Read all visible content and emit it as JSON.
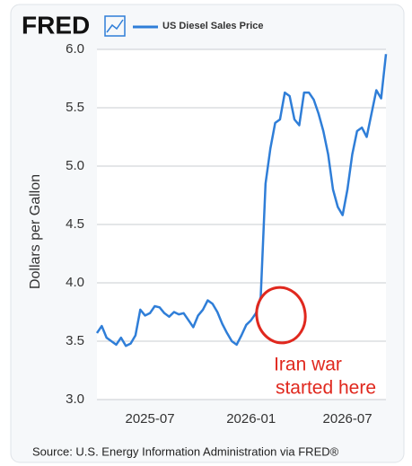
{
  "chart_data": {
    "type": "line",
    "logo": "FRED",
    "ylabel": "Dollars per Gallon",
    "source": "Source: U.S. Energy Information Administration via FRED®",
    "annotations": [
      "Iran war",
      "started here"
    ],
    "annotation_color": "#e0281e",
    "ylim": [
      3.0,
      6.0
    ],
    "yticks": [
      {
        "value": 3,
        "label": "3.0"
      },
      3.5,
      {
        "value": 4,
        "label": "4.0"
      },
      4.5,
      {
        "value": 5,
        "label": "5.0"
      },
      5.5,
      {
        "value": 6,
        "label": "6.0"
      }
    ],
    "grid": true,
    "categories": [
      null,
      null,
      null,
      null,
      null,
      null,
      null,
      null,
      null,
      null,
      null,
      "2025-07",
      null,
      null,
      null,
      null,
      null,
      null,
      null,
      null,
      null,
      null,
      null,
      null,
      null,
      null,
      null,
      null,
      null,
      null,
      null,
      null,
      "2026-01",
      null,
      null,
      null,
      null,
      null,
      null,
      null,
      null,
      null,
      null,
      null,
      null,
      null,
      null,
      null,
      null,
      null,
      null,
      null,
      "2026-07",
      null,
      null,
      null,
      null,
      null,
      null,
      null,
      null
    ],
    "series": [
      {
        "name": "US Diesel Sales Price",
        "color": "#2f7ed8",
        "values": [
          3.57,
          3.63,
          3.53,
          3.5,
          3.47,
          3.53,
          3.46,
          3.48,
          3.55,
          3.77,
          3.72,
          3.74,
          3.8,
          3.79,
          3.74,
          3.71,
          3.75,
          3.73,
          3.74,
          3.68,
          3.62,
          3.72,
          3.77,
          3.85,
          3.82,
          3.75,
          3.65,
          3.57,
          3.5,
          3.47,
          3.55,
          3.64,
          3.68,
          3.74,
          3.88,
          4.85,
          5.15,
          5.37,
          5.4,
          5.63,
          5.6,
          5.4,
          5.35,
          5.63,
          5.63,
          5.57,
          5.45,
          5.3,
          5.1,
          4.8,
          4.65,
          4.58,
          4.8,
          5.1,
          5.3,
          5.33,
          5.25,
          5.45,
          5.65,
          5.58,
          5.96
        ]
      }
    ]
  }
}
